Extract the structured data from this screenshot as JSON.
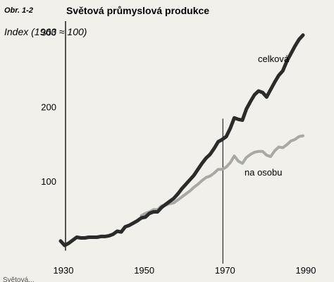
{
  "figure": {
    "label": "Obr. 1-2",
    "title": "Světová průmyslová produkce"
  },
  "chart_data": {
    "type": "line",
    "title": "Světová průmyslová produkce",
    "ylabel": "Index (1963 ≈ 100)",
    "xlabel": "",
    "xlim": [
      1930,
      1990
    ],
    "ylim": [
      0,
      310
    ],
    "x_ticks": [
      "1930",
      "1950",
      "1970",
      "1990"
    ],
    "y_ticks": [
      "100",
      "200",
      "300"
    ],
    "reference_line_x": 1970,
    "grid": false,
    "series": [
      {
        "name": "celková",
        "color": "#2b2b2b",
        "x": [
          1930,
          1931,
          1932,
          1933,
          1934,
          1935,
          1936,
          1937,
          1938,
          1939,
          1940,
          1941,
          1942,
          1943,
          1944,
          1945,
          1946,
          1947,
          1948,
          1949,
          1950,
          1951,
          1952,
          1953,
          1954,
          1955,
          1956,
          1957,
          1958,
          1959,
          1960,
          1961,
          1962,
          1963,
          1964,
          1965,
          1966,
          1967,
          1968,
          1969,
          1970,
          1971,
          1972,
          1973,
          1974,
          1975,
          1976,
          1977,
          1978,
          1979,
          1980,
          1981,
          1982,
          1983,
          1984,
          1985,
          1986,
          1987,
          1988,
          1989,
          1990
        ],
        "y": [
          21,
          15,
          18,
          22,
          26,
          25,
          25,
          26,
          26,
          26,
          27,
          27,
          28,
          30,
          34,
          33,
          40,
          42,
          45,
          48,
          52,
          53,
          58,
          60,
          60,
          66,
          70,
          74,
          78,
          84,
          91,
          97,
          103,
          109,
          117,
          125,
          132,
          137,
          145,
          154,
          157,
          161,
          172,
          186,
          184,
          183,
          198,
          208,
          217,
          222,
          220,
          214,
          224,
          234,
          243,
          249,
          262,
          272,
          282,
          291,
          297
        ]
      },
      {
        "name": "na osobu",
        "color": "#a8a8a4",
        "x": [
          1950,
          1951,
          1952,
          1953,
          1954,
          1955,
          1956,
          1957,
          1958,
          1959,
          1960,
          1961,
          1962,
          1963,
          1964,
          1965,
          1966,
          1967,
          1968,
          1969,
          1970,
          1971,
          1972,
          1973,
          1974,
          1975,
          1976,
          1977,
          1978,
          1979,
          1980,
          1981,
          1982,
          1983,
          1984,
          1985,
          1986,
          1987,
          1988,
          1989,
          1990
        ],
        "y": [
          55,
          58,
          60,
          63,
          63,
          68,
          69,
          71,
          72,
          76,
          80,
          84,
          88,
          93,
          97,
          102,
          106,
          108,
          112,
          117,
          117,
          120,
          126,
          135,
          128,
          125,
          133,
          137,
          140,
          141,
          141,
          136,
          134,
          142,
          147,
          146,
          150,
          155,
          157,
          161,
          162
        ]
      }
    ]
  },
  "caption_fragment": "Světová..."
}
